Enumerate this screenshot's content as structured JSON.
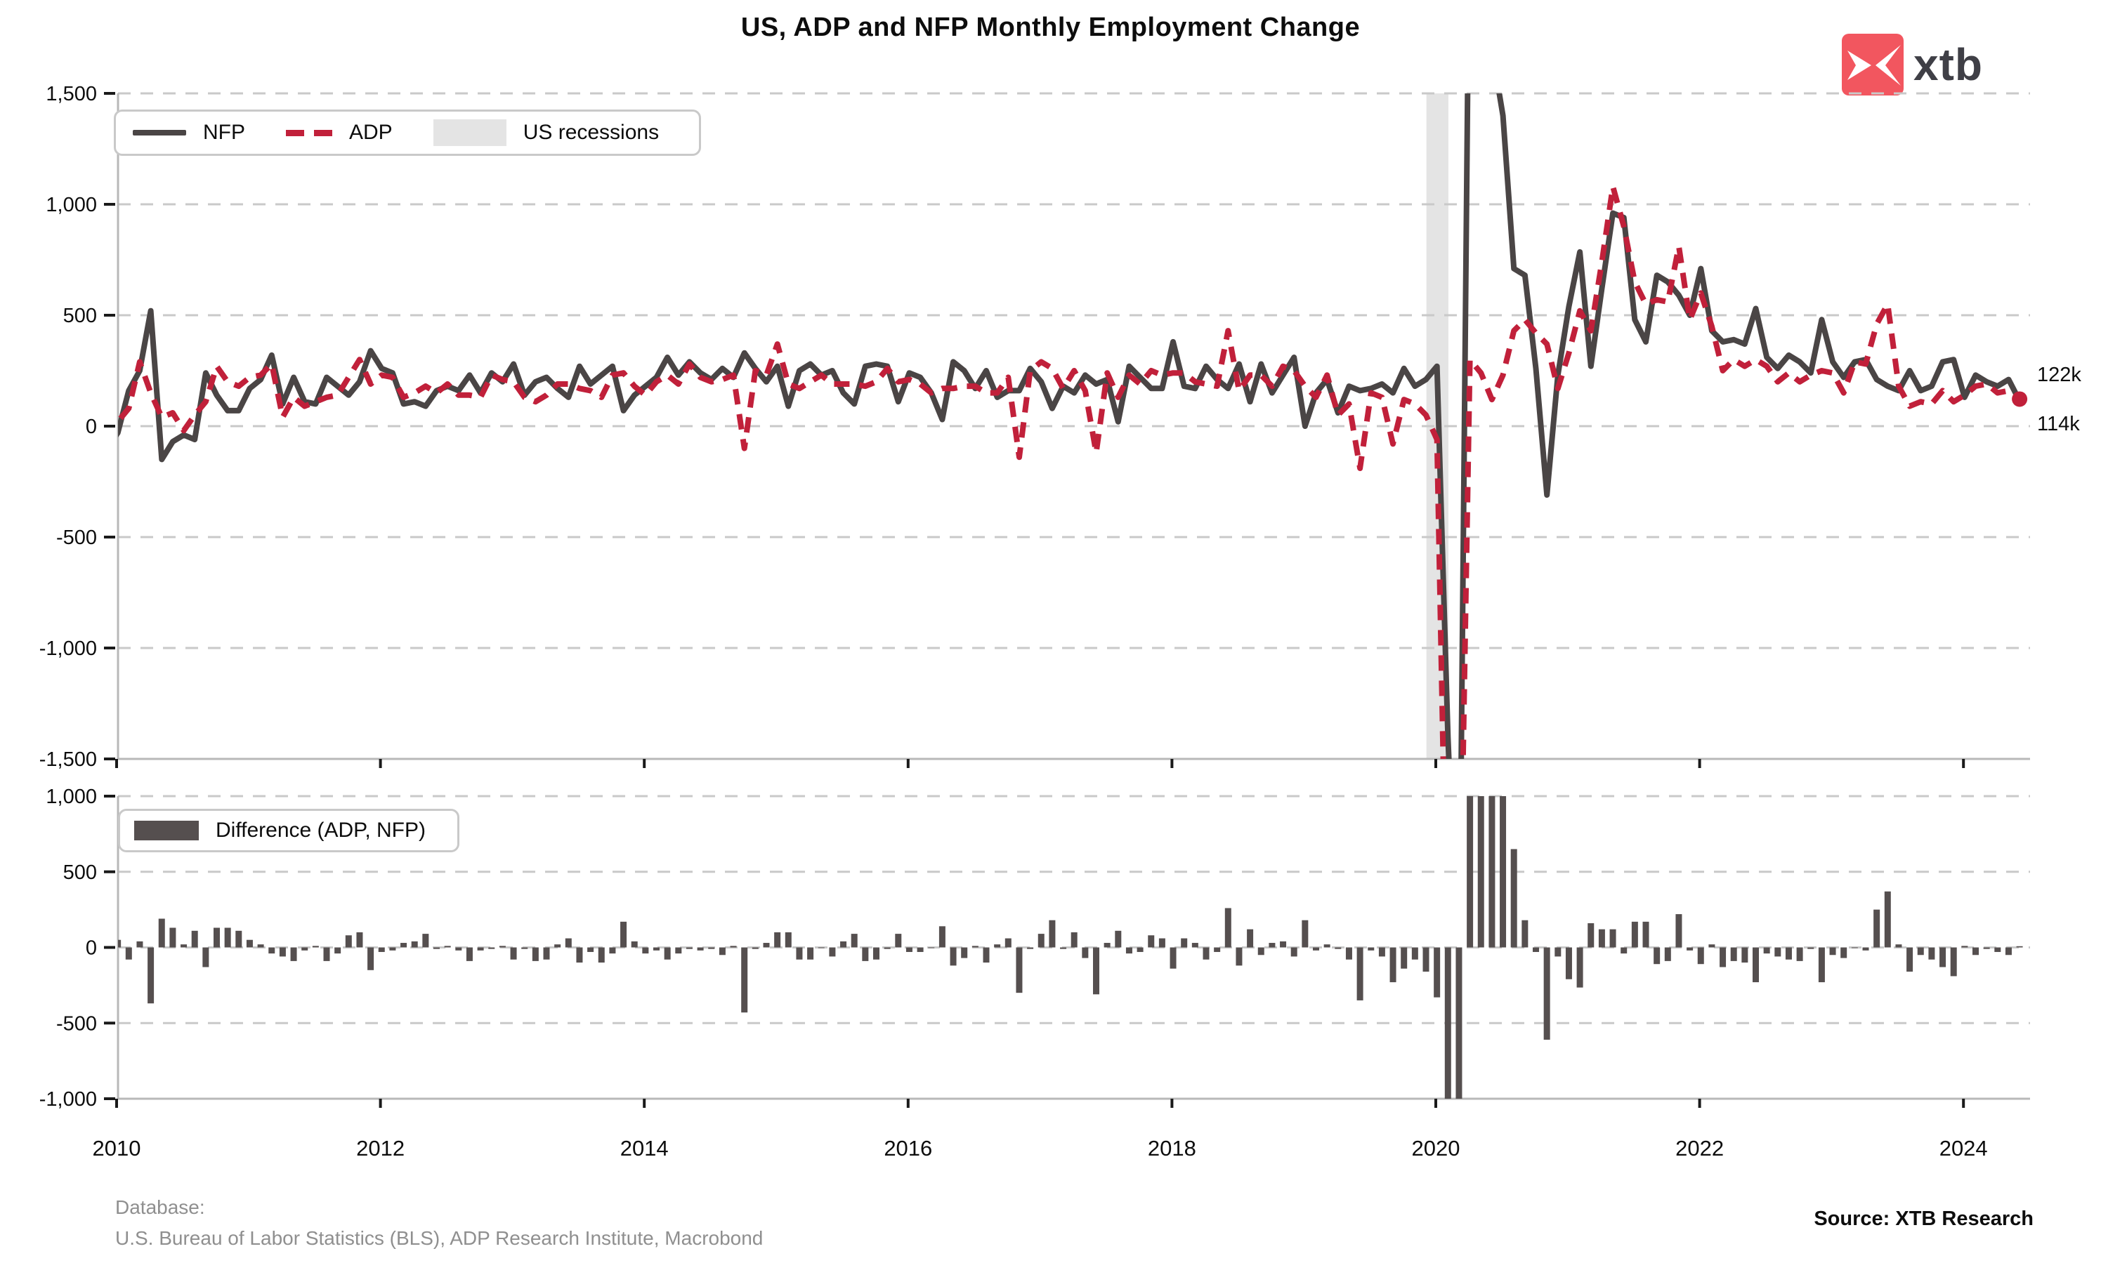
{
  "title": "US, ADP and NFP Monthly Employment Change",
  "logo": {
    "text": "xtb"
  },
  "colors": {
    "nfp": "#4a4545",
    "adp": "#c1203a",
    "bar": "#554f4f",
    "recession": "#e4e4e4",
    "grid": "#c9c9c9",
    "spine": "#b8b8b8",
    "tick": "#1a1a1a",
    "logo_red": "#f2565f"
  },
  "top_legend": {
    "items": [
      {
        "label": "NFP",
        "swatch": "solid-line"
      },
      {
        "label": "ADP",
        "swatch": "dashed-line"
      },
      {
        "label": "US recessions",
        "swatch": "band"
      }
    ]
  },
  "bottom_legend": {
    "items": [
      {
        "label": "Difference (ADP, NFP)",
        "swatch": "bar"
      }
    ]
  },
  "annotations": {
    "adp_last": "122k",
    "nfp_last": "114k"
  },
  "footer": {
    "database_label": "Database:",
    "database": "U.S. Bureau of Labor Statistics (BLS), ADP Research Institute, Macrobond",
    "source": "Source: XTB Research"
  },
  "chart_data": [
    {
      "type": "line",
      "title": "US, ADP and NFP Monthly Employment Change",
      "x_start": "2010-01",
      "x_end": "2024-07",
      "frequency": "monthly",
      "units": "thousands of jobs",
      "ylim": [
        -1500,
        1500
      ],
      "ytick_labels": [
        "1,500",
        "1,000",
        "500",
        "0",
        "-500",
        "-1,000",
        "-1,500"
      ],
      "xticks": [
        2010,
        2012,
        2014,
        2016,
        2018,
        2020,
        2022,
        2024
      ],
      "grid": "dashed-horizontal",
      "legend_position": "top-left",
      "recession_band": {
        "start": "2020-02",
        "end": "2020-04",
        "label": "US recessions"
      },
      "end_labels": {
        "ADP": "122k",
        "NFP": "114k"
      },
      "series": [
        {
          "name": "NFP",
          "style": "solid",
          "values": [
            -100,
            -30,
            160,
            250,
            520,
            -150,
            -70,
            -40,
            -60,
            240,
            140,
            70,
            70,
            170,
            210,
            320,
            100,
            220,
            110,
            100,
            220,
            180,
            140,
            200,
            340,
            260,
            240,
            100,
            110,
            90,
            160,
            180,
            160,
            230,
            150,
            240,
            200,
            280,
            140,
            200,
            220,
            170,
            130,
            270,
            190,
            230,
            270,
            70,
            140,
            180,
            220,
            310,
            230,
            290,
            240,
            210,
            260,
            220,
            330,
            260,
            200,
            270,
            90,
            250,
            280,
            230,
            250,
            150,
            100,
            270,
            280,
            270,
            110,
            240,
            220,
            150,
            30,
            290,
            250,
            170,
            250,
            130,
            160,
            160,
            260,
            200,
            80,
            180,
            150,
            230,
            190,
            210,
            20,
            270,
            220,
            170,
            170,
            380,
            180,
            170,
            270,
            210,
            170,
            280,
            110,
            280,
            150,
            230,
            310,
            0,
            150,
            210,
            60,
            180,
            160,
            170,
            190,
            150,
            260,
            180,
            210,
            270,
            -1400,
            -20500,
            2800,
            4800,
            1700,
            1400,
            710,
            680,
            260,
            -310,
            230,
            540,
            785,
            270,
            620,
            960,
            940,
            480,
            380,
            680,
            650,
            590,
            500,
            710,
            430,
            380,
            390,
            370,
            530,
            310,
            260,
            320,
            290,
            240,
            480,
            290,
            220,
            290,
            300,
            210,
            180,
            160,
            250,
            160,
            180,
            290,
            300,
            130,
            230,
            200,
            180,
            210,
            114
          ]
        },
        {
          "name": "ADP",
          "style": "dashed",
          "values": [
            -60,
            20,
            80,
            290,
            150,
            40,
            60,
            -20,
            50,
            110,
            270,
            200,
            180,
            220,
            230,
            280,
            40,
            130,
            90,
            110,
            130,
            140,
            220,
            300,
            190,
            230,
            220,
            130,
            150,
            180,
            150,
            190,
            140,
            140,
            130,
            230,
            210,
            200,
            130,
            110,
            140,
            190,
            190,
            170,
            160,
            130,
            230,
            240,
            180,
            140,
            200,
            230,
            190,
            280,
            220,
            200,
            210,
            230,
            -100,
            250,
            230,
            370,
            190,
            170,
            200,
            230,
            190,
            190,
            190,
            180,
            200,
            260,
            200,
            210,
            190,
            150,
            170,
            170,
            180,
            180,
            150,
            150,
            220,
            -140,
            250,
            290,
            260,
            170,
            250,
            160,
            -120,
            240,
            130,
            230,
            190,
            250,
            230,
            240,
            240,
            200,
            190,
            180,
            430,
            160,
            230,
            230,
            180,
            270,
            250,
            180,
            130,
            230,
            50,
            100,
            -190,
            150,
            130,
            -80,
            120,
            100,
            50,
            -60,
            -9000,
            -22000,
            300,
            240,
            120,
            230,
            430,
            480,
            420,
            370,
            170,
            330,
            520,
            430,
            740,
            1080,
            900,
            650,
            550,
            570,
            560,
            810,
            480,
            600,
            450,
            250,
            300,
            270,
            300,
            270,
            200,
            240,
            200,
            230,
            250,
            240,
            150,
            290,
            280,
            460,
            550,
            180,
            90,
            110,
            100,
            160,
            110,
            140,
            180,
            190,
            150,
            160,
            122
          ]
        }
      ]
    },
    {
      "type": "bar",
      "name": "Difference (ADP, NFP)",
      "derived": "ADP - NFP (computed from the two series above)",
      "units": "thousands of jobs",
      "ylim": [
        -1000,
        1000
      ],
      "ytick_labels": [
        "1,000",
        "500",
        "0",
        "-500",
        "-1,000"
      ],
      "xticks": [
        2010,
        2012,
        2014,
        2016,
        2018,
        2020,
        2022,
        2024
      ],
      "overrides": {
        "124": 1200,
        "125": 1100,
        "126": 1200,
        "127": 1100,
        "128": 650,
        "129": 180,
        "130": -30,
        "131": -610
      }
    }
  ]
}
